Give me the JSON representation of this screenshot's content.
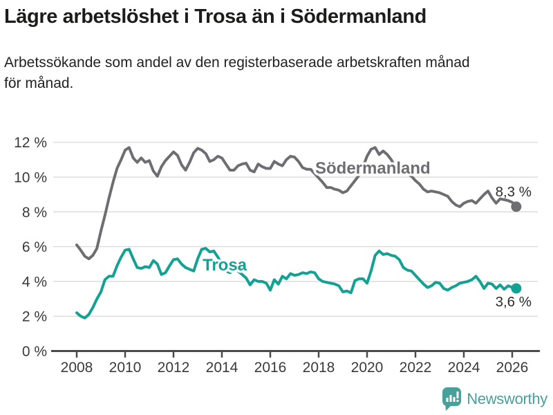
{
  "header": {
    "title": "Lägre arbetslöshet i Trosa än i Södermanland",
    "subtitle": "Arbetssökande som andel av den registerbaserade arbetskraften månad för månad."
  },
  "footer": {
    "brand": "Newsworthy",
    "brand_color": "#47a09a",
    "logo_icon": "bar-chart-speech-bubble-icon"
  },
  "chart_data": {
    "type": "line",
    "title": "",
    "xlabel": "",
    "ylabel": "",
    "unit": "%",
    "grid": "horizontal",
    "grid_color": "#d9d9d9",
    "axis_color": "#4a4a4b",
    "tick_label_color": "#3a3a3a",
    "value_label_color": "#2c2c2c",
    "x_start": 2008.0,
    "x_step_years": 0.166667,
    "x_ticks": [
      2008,
      2010,
      2012,
      2014,
      2016,
      2018,
      2020,
      2022,
      2024,
      2026
    ],
    "ylim": [
      0,
      12
    ],
    "y_ticks": [
      {
        "value": 0,
        "label": "0 %"
      },
      {
        "value": 2,
        "label": "2 %"
      },
      {
        "value": 4,
        "label": "4 %"
      },
      {
        "value": 6,
        "label": "6 %"
      },
      {
        "value": 8,
        "label": "8 %"
      },
      {
        "value": 10,
        "label": "10 %"
      },
      {
        "value": 12,
        "label": "12 %"
      }
    ],
    "series": [
      {
        "name": "Södermanland",
        "color": "#6d6d72",
        "end_label": "8,3 %",
        "end_value": 8.3,
        "values": [
          6.1,
          5.8,
          5.45,
          5.3,
          5.5,
          5.9,
          6.9,
          7.8,
          8.8,
          9.7,
          10.5,
          11.0,
          11.55,
          11.7,
          11.1,
          10.85,
          11.1,
          10.85,
          10.95,
          10.35,
          10.05,
          10.6,
          10.95,
          11.2,
          11.45,
          11.25,
          10.7,
          10.4,
          10.85,
          11.4,
          11.65,
          11.55,
          11.35,
          10.9,
          11.0,
          11.2,
          11.1,
          10.75,
          10.4,
          10.4,
          10.65,
          10.75,
          10.8,
          10.4,
          10.3,
          10.75,
          10.6,
          10.5,
          10.5,
          10.9,
          10.75,
          10.65,
          11.0,
          11.2,
          11.15,
          10.9,
          10.55,
          10.45,
          10.45,
          10.2,
          9.95,
          9.7,
          9.4,
          9.4,
          9.3,
          9.25,
          9.1,
          9.2,
          9.5,
          9.8,
          10.1,
          10.6,
          11.2,
          11.6,
          11.7,
          11.3,
          11.5,
          11.3,
          11.0,
          10.6,
          10.4,
          10.3,
          10.2,
          10.05,
          9.8,
          9.6,
          9.3,
          9.15,
          9.2,
          9.15,
          9.1,
          9.0,
          8.9,
          8.6,
          8.4,
          8.3,
          8.5,
          8.6,
          8.65,
          8.5,
          8.75,
          9.0,
          9.2,
          8.8,
          8.5,
          8.75,
          8.7,
          8.65,
          8.55,
          8.3
        ]
      },
      {
        "name": "Trosa",
        "color": "#12a192",
        "end_label": "3,6 %",
        "end_value": 3.6,
        "values": [
          2.2,
          2.0,
          1.9,
          2.1,
          2.5,
          3.0,
          3.4,
          4.1,
          4.3,
          4.3,
          4.9,
          5.4,
          5.8,
          5.85,
          5.3,
          4.8,
          4.75,
          4.85,
          4.8,
          5.2,
          5.0,
          4.4,
          4.5,
          4.9,
          5.25,
          5.3,
          5.0,
          4.8,
          4.7,
          4.6,
          5.3,
          5.85,
          5.9,
          5.7,
          5.75,
          5.4,
          5.0,
          4.6,
          4.5,
          4.65,
          4.6,
          4.4,
          4.2,
          3.8,
          4.1,
          4.0,
          4.0,
          3.9,
          3.5,
          4.1,
          3.85,
          4.3,
          4.15,
          4.45,
          4.35,
          4.4,
          4.5,
          4.45,
          4.55,
          4.5,
          4.15,
          4.0,
          3.95,
          3.9,
          3.85,
          3.75,
          3.4,
          3.45,
          3.35,
          4.05,
          4.15,
          4.15,
          3.9,
          4.6,
          5.5,
          5.75,
          5.55,
          5.6,
          5.5,
          5.45,
          5.25,
          4.8,
          4.65,
          4.6,
          4.35,
          4.1,
          3.85,
          3.65,
          3.75,
          3.95,
          3.9,
          3.6,
          3.5,
          3.65,
          3.75,
          3.9,
          3.95,
          4.0,
          4.1,
          4.3,
          4.0,
          3.6,
          3.9,
          3.85,
          3.6,
          3.8,
          3.55,
          3.75,
          3.65,
          3.6
        ]
      }
    ],
    "legend_position": "inline-labels"
  }
}
